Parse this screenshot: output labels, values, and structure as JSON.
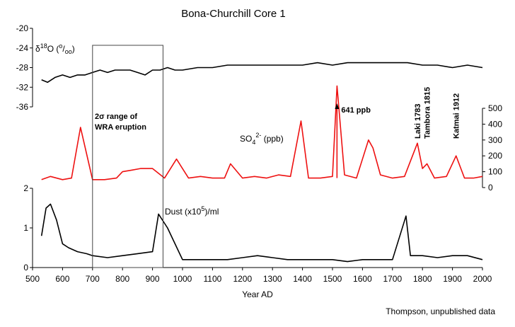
{
  "chart_data": {
    "type": "line",
    "title": "Bona-Churchill Core 1",
    "xlabel": "Year AD",
    "xlim": [
      500,
      2000
    ],
    "x_ticks": [
      500,
      600,
      700,
      800,
      900,
      1000,
      1100,
      1200,
      1300,
      1400,
      1500,
      1600,
      1700,
      1800,
      1900,
      2000
    ],
    "x_tick_labels": [
      "500",
      "600",
      "700",
      "800",
      "900",
      "1000",
      "1100",
      "1200",
      "1300",
      "1400",
      "1500",
      "1600",
      "1700",
      "1800",
      "1900",
      "2000"
    ],
    "credit": "Thompson, unpublished data",
    "panels": [
      {
        "name": "d18O",
        "label_parts": [
          "δ",
          "18",
          "O (",
          "o",
          "/",
          "oo",
          ")"
        ],
        "axis_side": "left",
        "ylim": [
          -36,
          -20
        ],
        "y_ticks": [
          -20,
          -24,
          -28,
          -32,
          -36
        ],
        "y_tick_labels": [
          "-20",
          "-24",
          "-28",
          "-32",
          "-36"
        ],
        "color": "#000000",
        "series": [
          {
            "x": [
              530,
              550,
              575,
              600,
              625,
              650,
              675,
              700,
              725,
              750,
              775,
              800,
              825,
              850,
              875,
              900,
              925,
              950,
              975,
              1000,
              1050,
              1100,
              1150,
              1200,
              1250,
              1300,
              1350,
              1400,
              1450,
              1500,
              1550,
              1600,
              1650,
              1700,
              1750,
              1800,
              1850,
              1900,
              1950,
              2000
            ],
            "values": [
              -30.5,
              -31,
              -30,
              -29.5,
              -30,
              -29.5,
              -29.5,
              -29,
              -28.5,
              -29,
              -28.5,
              -28.5,
              -28.5,
              -29,
              -29.5,
              -28.5,
              -28.5,
              -28,
              -28.5,
              -28.5,
              -28,
              -28,
              -27.5,
              -27.5,
              -27.5,
              -27.5,
              -27.5,
              -27.5,
              -27,
              -27.5,
              -27,
              -27,
              -27,
              -27,
              -27,
              -27.5,
              -27.5,
              -28,
              -27.5,
              -28
            ]
          }
        ]
      },
      {
        "name": "so4",
        "label_parts": [
          "SO",
          "4",
          "2-",
          " (ppb)"
        ],
        "axis_side": "right",
        "ylim": [
          0,
          500
        ],
        "y_ticks": [
          0,
          100,
          200,
          300,
          400,
          500
        ],
        "y_tick_labels": [
          "0",
          "100",
          "200",
          "300",
          "400",
          "500"
        ],
        "color": "#ee1111",
        "series": [
          {
            "x": [
              530,
              560,
              600,
              630,
              660,
              700,
              740,
              780,
              800,
              830,
              860,
              900,
              940,
              980,
              1020,
              1060,
              1100,
              1140,
              1160,
              1200,
              1240,
              1280,
              1320,
              1360,
              1395,
              1420,
              1460,
              1500,
              1515,
              1540,
              1580,
              1620,
              1635,
              1660,
              1700,
              1740,
              1783,
              1800,
              1815,
              1840,
              1880,
              1912,
              1940,
              1970,
              2000
            ],
            "values": [
              50,
              70,
              50,
              60,
              380,
              50,
              50,
              60,
              100,
              110,
              120,
              120,
              60,
              180,
              60,
              70,
              60,
              60,
              150,
              60,
              70,
              60,
              80,
              70,
              420,
              60,
              60,
              70,
              641,
              80,
              60,
              300,
              250,
              80,
              60,
              70,
              280,
              120,
              150,
              60,
              70,
              200,
              60,
              60,
              70
            ]
          }
        ]
      },
      {
        "name": "dust",
        "label_parts": [
          "Dust (x10",
          "5",
          ")/ml"
        ],
        "axis_side": "left",
        "ylim": [
          0,
          2
        ],
        "y_ticks": [
          0,
          1,
          2
        ],
        "y_tick_labels": [
          "0",
          "1",
          "2"
        ],
        "color": "#000000",
        "series": [
          {
            "x": [
              530,
              545,
              560,
              580,
              600,
              620,
              650,
              680,
              700,
              750,
              800,
              850,
              900,
              920,
              950,
              1000,
              1050,
              1100,
              1150,
              1200,
              1250,
              1300,
              1350,
              1400,
              1450,
              1500,
              1550,
              1600,
              1650,
              1700,
              1745,
              1760,
              1800,
              1850,
              1900,
              1950,
              2000
            ],
            "values": [
              0.8,
              1.5,
              1.6,
              1.2,
              0.6,
              0.5,
              0.4,
              0.35,
              0.3,
              0.25,
              0.3,
              0.35,
              0.4,
              1.35,
              1.0,
              0.2,
              0.2,
              0.2,
              0.2,
              0.25,
              0.3,
              0.25,
              0.2,
              0.2,
              0.2,
              0.2,
              0.15,
              0.2,
              0.2,
              0.2,
              1.3,
              0.3,
              0.3,
              0.25,
              0.3,
              0.3,
              0.2
            ]
          }
        ]
      }
    ],
    "annotations": {
      "box_label_line1": "2σ range of",
      "box_label_line2": "WRA eruption",
      "box_x_range": [
        700,
        935
      ],
      "peak_641": "641 ppb",
      "peak_641_year": 1515,
      "laki": "Laki 1783",
      "laki_year": 1783,
      "tambora": "Tambora 1815",
      "tambora_year": 1815,
      "katmai": "Katmai 1912",
      "katmai_year": 1912
    }
  }
}
